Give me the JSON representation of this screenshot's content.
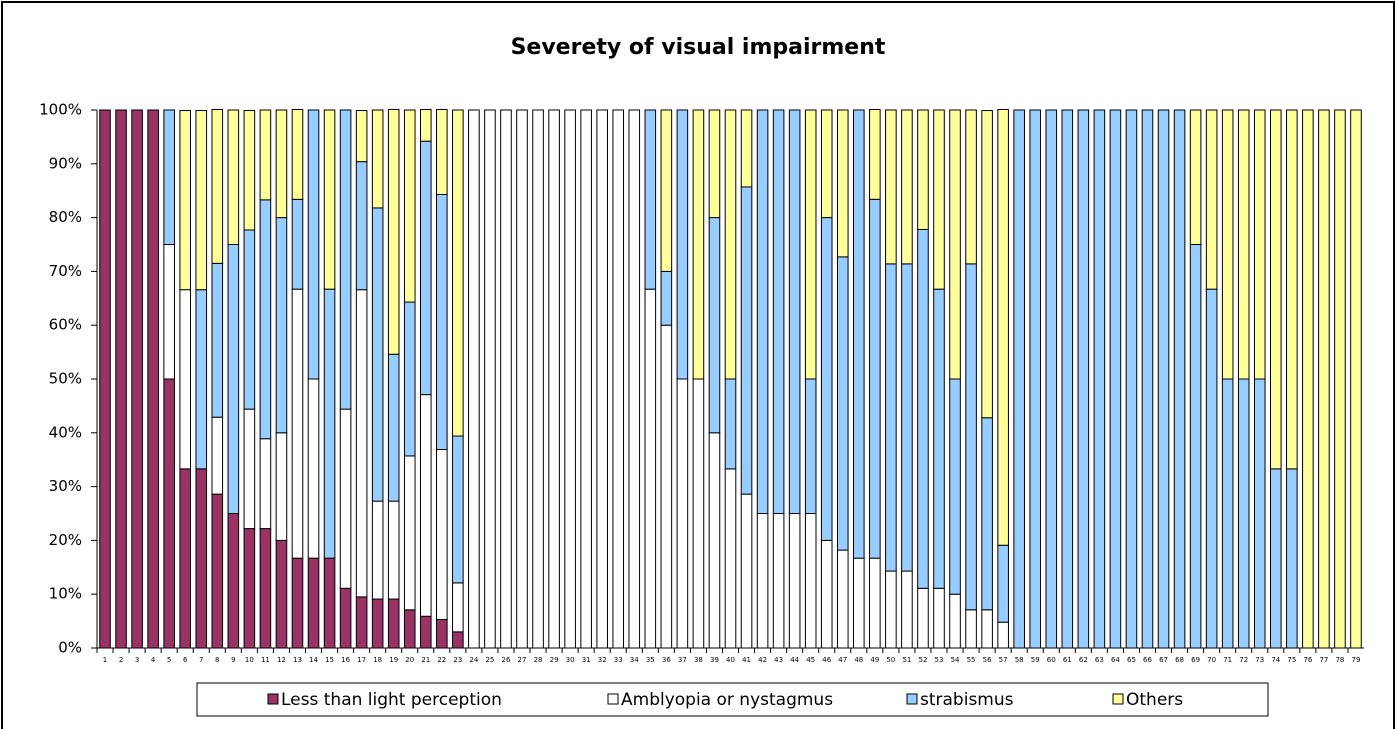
{
  "chart_data": {
    "type": "stacked_bar_percent",
    "title": "Severety of visual impairment",
    "categories": [
      "1",
      "2",
      "3",
      "4",
      "5",
      "6",
      "7",
      "8",
      "9",
      "10",
      "11",
      "12",
      "13",
      "14",
      "15",
      "16",
      "17",
      "18",
      "19",
      "20",
      "21",
      "22",
      "23",
      "24",
      "25",
      "26",
      "27",
      "28",
      "29",
      "30",
      "31",
      "32",
      "33",
      "34",
      "35",
      "36",
      "37",
      "38",
      "39",
      "40",
      "41",
      "42",
      "43",
      "44",
      "45",
      "46",
      "47",
      "48",
      "49",
      "50",
      "51",
      "52",
      "53",
      "54",
      "55",
      "56",
      "57",
      "58",
      "59",
      "60",
      "61",
      "62",
      "63",
      "64",
      "65",
      "66",
      "67",
      "68",
      "69",
      "70",
      "71",
      "72",
      "73",
      "74",
      "75",
      "76",
      "77",
      "78",
      "79"
    ],
    "series": [
      {
        "name": "Less than light perception",
        "color": "#993366",
        "values": [
          100,
          100,
          100,
          100,
          50,
          33.3,
          33.3,
          28.6,
          25,
          22.2,
          22.2,
          20,
          16.7,
          16.7,
          16.7,
          11.1,
          9.5,
          9.1,
          9.1,
          7.1,
          5.9,
          5.3,
          3.0,
          0,
          0,
          0,
          0,
          0,
          0,
          0,
          0,
          0,
          0,
          0,
          0,
          0,
          0,
          0,
          0,
          0,
          0,
          0,
          0,
          0,
          0,
          0,
          0,
          0,
          0,
          0,
          0,
          0,
          0,
          0,
          0,
          0,
          0,
          0,
          0,
          0,
          0,
          0,
          0,
          0,
          0,
          0,
          0,
          0,
          0,
          0,
          0,
          0,
          0,
          0,
          0,
          0,
          0,
          0,
          0
        ]
      },
      {
        "name": "Amblyopia or nystagmus",
        "color": "#ffffff",
        "values": [
          0,
          0,
          0,
          0,
          25,
          33.3,
          0,
          14.3,
          0,
          22.2,
          16.7,
          20,
          50,
          33.3,
          0,
          33.3,
          57.1,
          18.2,
          18.2,
          28.6,
          41.2,
          31.6,
          9.1,
          100,
          100,
          100,
          100,
          100,
          100,
          100,
          100,
          100,
          100,
          100,
          66.7,
          60,
          50,
          50,
          40,
          33.3,
          28.6,
          25,
          25,
          25,
          25,
          20,
          18.2,
          16.7,
          16.7,
          14.3,
          14.3,
          11.1,
          11.1,
          10,
          7.1,
          7.1,
          4.8,
          0,
          0,
          0,
          0,
          0,
          0,
          0,
          0,
          0,
          0,
          0,
          0,
          0,
          0,
          0,
          0,
          0,
          0,
          0,
          0,
          0,
          0
        ]
      },
      {
        "name": "strabismus",
        "color": "#99ccff",
        "values": [
          0,
          0,
          0,
          0,
          25,
          0,
          33.3,
          28.6,
          50,
          33.3,
          44.4,
          40,
          16.7,
          50,
          50,
          55.6,
          23.8,
          54.5,
          27.3,
          28.6,
          47.1,
          47.4,
          27.3,
          0,
          0,
          0,
          0,
          0,
          0,
          0,
          0,
          0,
          0,
          0,
          33.3,
          10,
          50,
          0,
          40,
          16.7,
          57.1,
          75,
          75,
          75,
          25,
          60,
          54.5,
          83.3,
          66.7,
          57.1,
          57.1,
          66.7,
          55.6,
          40,
          64.3,
          35.7,
          14.3,
          100,
          100,
          100,
          100,
          100,
          100,
          100,
          100,
          100,
          100,
          100,
          75,
          66.7,
          50,
          50,
          50,
          33.3,
          33.3,
          0,
          0,
          0,
          0
        ]
      },
      {
        "name": "Others",
        "color": "#ffff99",
        "values": [
          0,
          0,
          0,
          0,
          0,
          33.3,
          33.3,
          28.6,
          25,
          22.2,
          16.7,
          20,
          16.7,
          0,
          33.3,
          0,
          9.5,
          18.2,
          45.5,
          35.7,
          5.9,
          15.8,
          60.6,
          0,
          0,
          0,
          0,
          0,
          0,
          0,
          0,
          0,
          0,
          0,
          0,
          30,
          0,
          50,
          20,
          50,
          14.3,
          0,
          0,
          0,
          50,
          20,
          27.3,
          0,
          16.7,
          28.6,
          28.6,
          22.2,
          33.3,
          50,
          28.6,
          57.1,
          81,
          0,
          0,
          0,
          0,
          0,
          0,
          0,
          0,
          0,
          0,
          0,
          25,
          33.3,
          50,
          50,
          50,
          66.7,
          66.7,
          100,
          100,
          100,
          100
        ]
      }
    ],
    "ylim": [
      0,
      100
    ],
    "yticks": [
      {
        "value": 0,
        "label": "0%"
      },
      {
        "value": 10,
        "label": "10%"
      },
      {
        "value": 20,
        "label": "20%"
      },
      {
        "value": 30,
        "label": "30%"
      },
      {
        "value": 40,
        "label": "40%"
      },
      {
        "value": 50,
        "label": "50%"
      },
      {
        "value": 60,
        "label": "60%"
      },
      {
        "value": 70,
        "label": "70%"
      },
      {
        "value": 80,
        "label": "80%"
      },
      {
        "value": 90,
        "label": "90%"
      },
      {
        "value": 100,
        "label": "100%"
      }
    ],
    "legend": "bottom"
  }
}
